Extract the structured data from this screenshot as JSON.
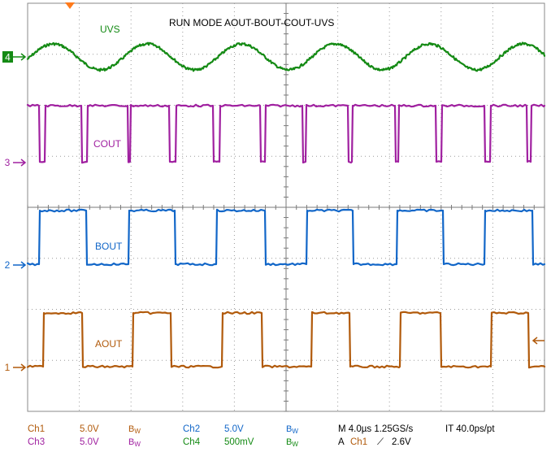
{
  "screen_title": "RUN MODE AOUT-BOUT-COUT-UVS",
  "colors": {
    "ch1": "#b15a0b",
    "ch2": "#1166c8",
    "ch3": "#a020a0",
    "ch4": "#148a14",
    "grid": "#9a9a9a",
    "trigger_marker": "#ff7a1a"
  },
  "channels": [
    {
      "id": "ch4",
      "marker": "4",
      "label": "UVS",
      "waveform": "sine",
      "cycles": 5.5
    },
    {
      "id": "ch3",
      "marker": "3",
      "label": "COUT",
      "waveform": "pulse-low"
    },
    {
      "id": "ch2",
      "marker": "2",
      "label": "BOUT",
      "waveform": "square"
    },
    {
      "id": "ch1",
      "marker": "1",
      "label": "AOUT",
      "waveform": "square"
    }
  ],
  "status": {
    "row1": {
      "ch1_name": "Ch1",
      "ch1_scale": "5.0V",
      "ch1_bw": "B",
      "ch1_bw_sub": "W",
      "ch2_name": "Ch2",
      "ch2_scale": "5.0V",
      "ch2_bw": "B",
      "ch2_bw_sub": "W",
      "horizontal": "M 4.0µs 1.25GS/s",
      "interval": "IT 40.0ps/pt"
    },
    "row2": {
      "ch3_name": "Ch3",
      "ch3_scale": "5.0V",
      "ch3_bw": "B",
      "ch3_bw_sub": "W",
      "ch4_name": "Ch4",
      "ch4_scale": "500mV",
      "ch4_bw": "B",
      "ch4_bw_sub": "W",
      "trigger_prefix": "A",
      "trigger_source": "Ch1",
      "trigger_slope_symbol": "⟋",
      "trigger_level": "2.6V"
    }
  }
}
